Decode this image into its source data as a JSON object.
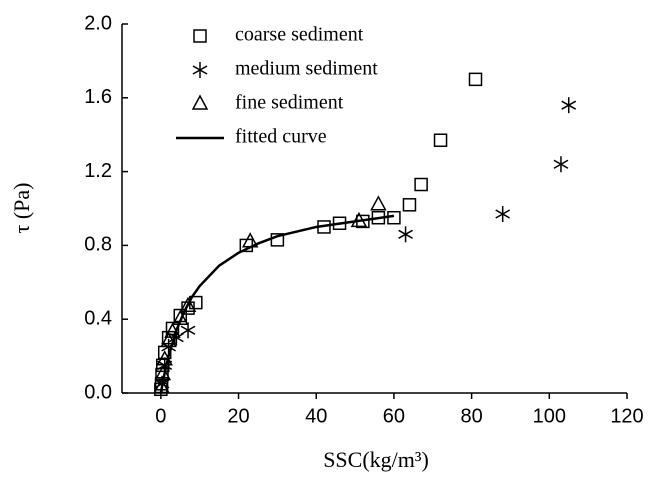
{
  "chart_data": {
    "type": "scatter",
    "xlabel": "SSC(kg/m³)",
    "ylabel": "τ (Pa)",
    "xlim": [
      -10,
      120
    ],
    "xticks": [
      0,
      20,
      40,
      60,
      80,
      100,
      120
    ],
    "ylim": [
      0,
      2
    ],
    "yticks": [
      {
        "value": 0,
        "label": "0.0"
      },
      0.4,
      0.8,
      1.2,
      1.6,
      {
        "value": 2,
        "label": "2.0"
      }
    ],
    "legend": "upper left",
    "series": [
      {
        "name": "coarse sediment",
        "marker": "square",
        "color": "#000000",
        "x": [
          0,
          0.2,
          0.3,
          0.5,
          1,
          2,
          3,
          5,
          7,
          9,
          22,
          30,
          42,
          46,
          52,
          56,
          60,
          64,
          67,
          72,
          81
        ],
        "values": [
          0.02,
          0.05,
          0.1,
          0.15,
          0.22,
          0.3,
          0.35,
          0.42,
          0.46,
          0.49,
          0.8,
          0.83,
          0.9,
          0.92,
          0.93,
          0.95,
          0.95,
          1.02,
          1.13,
          1.37,
          1.7
        ]
      },
      {
        "name": "medium sediment",
        "marker": "asterisk",
        "color": "#000000",
        "x": [
          0.3,
          1,
          2,
          4,
          7,
          63,
          88,
          103,
          105
        ],
        "values": [
          0.05,
          0.15,
          0.25,
          0.3,
          0.34,
          0.86,
          0.97,
          1.24,
          1.56
        ]
      },
      {
        "name": "fine sediment",
        "marker": "triangle",
        "color": "#000000",
        "x": [
          0.2,
          0.5,
          1,
          2,
          3,
          5,
          7,
          23,
          51,
          56
        ],
        "values": [
          0.03,
          0.1,
          0.18,
          0.28,
          0.33,
          0.4,
          0.47,
          0.82,
          0.93,
          1.02
        ]
      },
      {
        "name": "fitted curve",
        "marker": "line",
        "color": "#000000",
        "x": [
          0,
          1,
          2,
          4,
          6,
          8,
          10,
          15,
          20,
          25,
          30,
          40,
          50,
          60
        ],
        "values": [
          0,
          0.11,
          0.2,
          0.34,
          0.44,
          0.52,
          0.58,
          0.69,
          0.76,
          0.81,
          0.85,
          0.9,
          0.93,
          0.96
        ]
      }
    ]
  }
}
